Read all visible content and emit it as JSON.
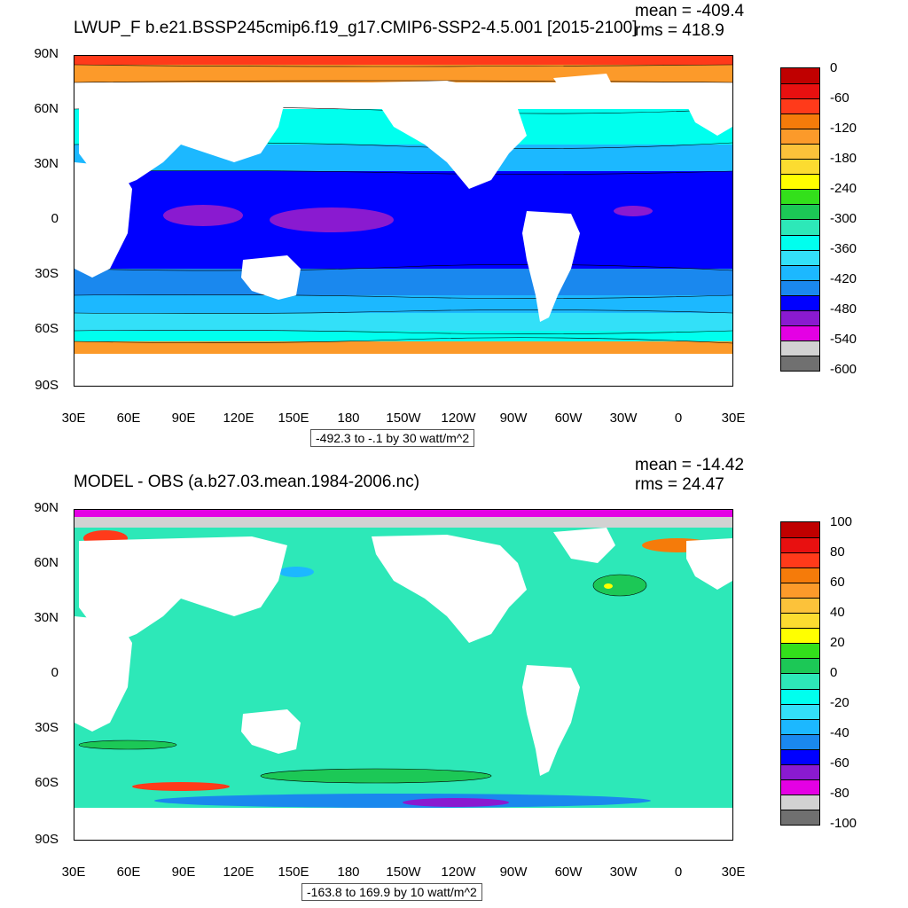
{
  "panels": [
    {
      "title": "LWUP_F b.e21.BSSP245cmip6.f19_g17.CMIP6-SSP2-4.5.001 [2015-2100]",
      "mean": "mean = -409.4",
      "rms": "rms = 418.9",
      "lat_labels": [
        "90N",
        "60N",
        "30N",
        "0",
        "30S",
        "60S",
        "90S"
      ],
      "lon_labels": [
        "30E",
        "60E",
        "90E",
        "120E",
        "150E",
        "180",
        "150W",
        "120W",
        "90W",
        "60W",
        "30W",
        "0",
        "30E"
      ],
      "range_label": "-492.3 to -.1 by 30 watt/m^2",
      "colorbar_labels": [
        "0",
        "-60",
        "-120",
        "-180",
        "-240",
        "-300",
        "-360",
        "-420",
        "-480",
        "-540",
        "-600"
      ],
      "colorbar_colors": [
        "#c00000",
        "#e81010",
        "#ff3a1a",
        "#f57b0a",
        "#fc9a2a",
        "#fcc23a",
        "#fcdc30",
        "#ffff00",
        "#33e01b",
        "#1cc856",
        "#2de8b8",
        "#00ffee",
        "#33e0f8",
        "#1cb8ff",
        "#1a88ee",
        "#0000ff",
        "#8a1ad0",
        "#e400e4",
        "#d2d2d2",
        "#707070"
      ]
    },
    {
      "title": "MODEL - OBS (a.b27.03.mean.1984-2006.nc)",
      "mean": "mean = -14.42",
      "rms": "rms = 24.47",
      "lat_labels": [
        "90N",
        "60N",
        "30N",
        "0",
        "30S",
        "60S",
        "90S"
      ],
      "lon_labels": [
        "30E",
        "60E",
        "90E",
        "120E",
        "150E",
        "180",
        "150W",
        "120W",
        "90W",
        "60W",
        "30W",
        "0",
        "30E"
      ],
      "range_label": "-163.8 to 169.9 by 10 watt/m^2",
      "colorbar_labels": [
        "100",
        "80",
        "60",
        "40",
        "20",
        "0",
        "-20",
        "-40",
        "-60",
        "-80",
        "-100"
      ],
      "colorbar_colors": [
        "#c00000",
        "#e81010",
        "#ff3a1a",
        "#f57b0a",
        "#fc9a2a",
        "#fcc23a",
        "#fcdc30",
        "#ffff00",
        "#33e01b",
        "#1cc856",
        "#2de8b8",
        "#00ffee",
        "#33e0f8",
        "#1cb8ff",
        "#1a88ee",
        "#0000ff",
        "#8a1ad0",
        "#e400e4",
        "#d2d2d2",
        "#707070"
      ]
    }
  ]
}
